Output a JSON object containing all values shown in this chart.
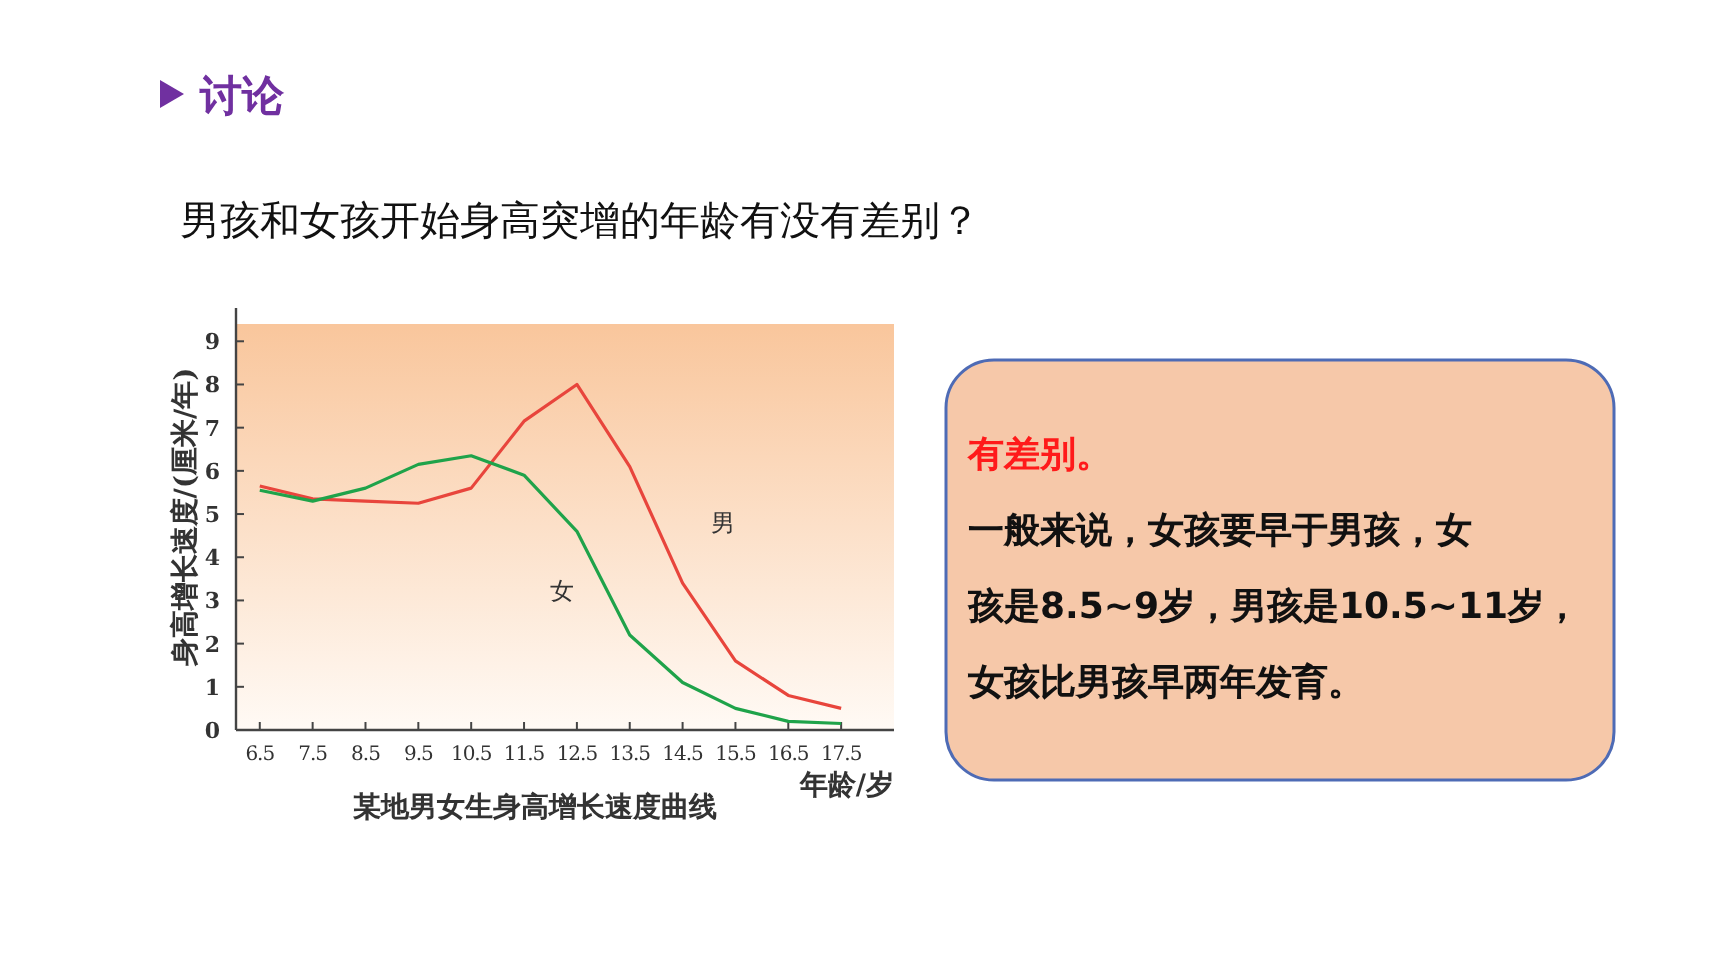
{
  "chart_data": {
    "type": "line",
    "title": "讨论",
    "subtitle": "男孩和女孩开始身高突增的年龄有没有差别？",
    "annotations": [
      "某地男女生身高增长速度曲线",
      "有差别。",
      "一般来说，女孩要早于男孩，女",
      "孩是8.5~9岁，男孩是10.5~11岁，",
      "女孩比男孩早两年发育。"
    ],
    "xlabel": "年龄/岁",
    "ylabel": "身高增长速度/(厘米/年)",
    "x": [
      6.5,
      7.5,
      8.5,
      9.5,
      10.5,
      11.5,
      12.5,
      13.5,
      14.5,
      15.5,
      16.5,
      17.5
    ],
    "series": [
      {
        "name": "男",
        "color": "#e8453c",
        "values": [
          5.65,
          5.35,
          5.3,
          5.25,
          5.6,
          7.15,
          8.0,
          6.1,
          3.4,
          1.6,
          0.8,
          0.5
        ]
      },
      {
        "name": "女",
        "color": "#1fa34a",
        "values": [
          5.55,
          5.3,
          5.6,
          6.15,
          6.35,
          5.9,
          4.6,
          2.2,
          1.1,
          0.5,
          0.2,
          0.15
        ]
      }
    ],
    "xlim": [
      6.05,
      18.5
    ],
    "ylim": [
      0,
      9.4
    ],
    "xticks": [
      6.5,
      7.5,
      8.5,
      9.5,
      10.5,
      11.5,
      12.5,
      13.5,
      14.5,
      15.5,
      16.5,
      17.5
    ],
    "yticks": [
      0,
      1,
      2,
      3,
      4,
      5,
      6,
      7,
      8,
      9
    ],
    "grid": false,
    "legend": false,
    "marker": "none",
    "line_style": "solid"
  }
}
